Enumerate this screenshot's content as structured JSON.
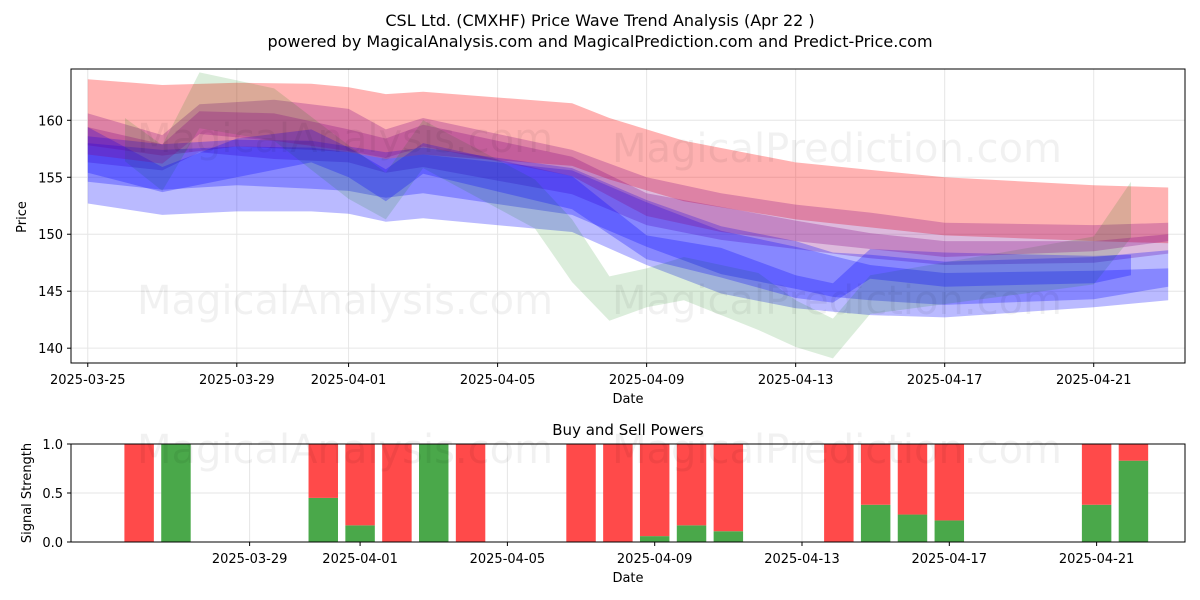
{
  "chart_data": [
    {
      "type": "area",
      "title_line1": "CSL Ltd. (CMXHF) Price Wave Trend Analysis (Apr 22 )",
      "title_line2": "powered by MagicalAnalysis.com and MagicalPrediction.com and Predict-Price.com",
      "xlabel": "Date",
      "ylabel": "Price",
      "x_ticks": [
        "2025-03-25",
        "2025-03-29",
        "2025-04-01",
        "2025-04-05",
        "2025-04-09",
        "2025-04-13",
        "2025-04-17",
        "2025-04-21"
      ],
      "y_ticks": [
        140,
        145,
        150,
        155,
        160
      ],
      "ylim": [
        138.7,
        164.5
      ],
      "xlim": [
        "2025-03-24",
        "2025-04-23"
      ],
      "grid": true,
      "bands": [
        {
          "color": "#ff0000",
          "x": [
            "2025-03-25",
            "2025-03-27",
            "2025-03-29",
            "2025-03-31",
            "2025-04-01",
            "2025-04-02",
            "2025-04-03",
            "2025-04-07",
            "2025-04-08",
            "2025-04-10",
            "2025-04-13",
            "2025-04-17",
            "2025-04-21",
            "2025-04-23"
          ],
          "upper": [
            163.6,
            163.1,
            163.3,
            163.2,
            162.9,
            162.3,
            162.5,
            161.5,
            160.2,
            158.2,
            156.3,
            155.0,
            154.3,
            154.1
          ],
          "lower": [
            157.8,
            156.9,
            157.7,
            157.4,
            157.2,
            156.6,
            157.0,
            156.0,
            154.8,
            152.9,
            151.3,
            149.9,
            149.4,
            149.2
          ]
        },
        {
          "color": "#800080",
          "x": [
            "2025-03-25",
            "2025-03-27",
            "2025-03-28",
            "2025-03-30",
            "2025-04-01",
            "2025-04-02",
            "2025-04-03",
            "2025-04-07",
            "2025-04-09",
            "2025-04-11",
            "2025-04-13",
            "2025-04-15",
            "2025-04-17",
            "2025-04-21",
            "2025-04-23"
          ],
          "upper": [
            160.6,
            158.7,
            161.4,
            161.8,
            161.0,
            159.2,
            160.2,
            157.4,
            155.0,
            153.6,
            152.6,
            151.9,
            151.0,
            150.8,
            151.0
          ],
          "lower": [
            156.3,
            155.6,
            157.2,
            156.6,
            156.3,
            155.4,
            155.9,
            153.5,
            150.8,
            149.5,
            148.7,
            147.9,
            147.3,
            147.5,
            148.3
          ]
        },
        {
          "color": "#0000ff",
          "x": [
            "2025-03-25",
            "2025-03-27",
            "2025-03-29",
            "2025-03-31",
            "2025-04-01",
            "2025-04-02",
            "2025-04-03",
            "2025-04-07",
            "2025-04-09",
            "2025-04-11",
            "2025-04-13",
            "2025-04-15",
            "2025-04-17",
            "2025-04-21",
            "2025-04-23"
          ],
          "upper": [
            158.0,
            157.4,
            157.7,
            157.6,
            157.2,
            156.6,
            157.0,
            155.6,
            152.8,
            150.3,
            148.9,
            147.3,
            146.6,
            146.8,
            147.0
          ],
          "lower": [
            152.7,
            151.7,
            152.0,
            152.0,
            151.8,
            151.1,
            151.4,
            150.2,
            147.3,
            144.8,
            143.5,
            142.9,
            142.7,
            143.6,
            144.2
          ]
        },
        {
          "color": "#0000ff",
          "x": [
            "2025-03-25",
            "2025-03-27",
            "2025-03-29",
            "2025-03-31",
            "2025-04-01",
            "2025-04-02",
            "2025-04-03",
            "2025-04-07",
            "2025-04-09",
            "2025-04-11",
            "2025-04-13",
            "2025-04-14",
            "2025-04-15",
            "2025-04-17",
            "2025-04-21",
            "2025-04-23"
          ],
          "upper": [
            158.6,
            157.9,
            158.3,
            158.2,
            157.7,
            157.2,
            157.6,
            155.8,
            153.0,
            150.7,
            149.4,
            148.4,
            148.2,
            147.6,
            148.0,
            148.6
          ],
          "lower": [
            154.6,
            153.9,
            154.3,
            154.0,
            153.8,
            153.2,
            153.6,
            151.7,
            148.9,
            146.5,
            145.2,
            144.5,
            144.2,
            143.8,
            144.3,
            145.4
          ]
        },
        {
          "color": "#008000",
          "x": [
            "2025-03-26",
            "2025-03-27",
            "2025-03-28",
            "2025-03-30",
            "2025-04-01",
            "2025-04-02",
            "2025-04-03",
            "2025-04-06",
            "2025-04-07",
            "2025-04-08",
            "2025-04-09",
            "2025-04-10",
            "2025-04-12",
            "2025-04-13",
            "2025-04-14",
            "2025-04-15",
            "2025-04-21",
            "2025-04-22"
          ],
          "upper": [
            160.2,
            157.8,
            164.2,
            162.8,
            157.8,
            155.4,
            160.0,
            154.8,
            151.3,
            146.3,
            147.0,
            148.0,
            146.6,
            144.2,
            142.6,
            146.4,
            149.8,
            154.6
          ],
          "lower": [
            156.4,
            153.8,
            159.3,
            158.2,
            153.1,
            151.3,
            155.8,
            150.5,
            145.8,
            142.4,
            143.6,
            144.2,
            141.6,
            140.1,
            139.1,
            143.0,
            145.6,
            149.7
          ]
        },
        {
          "color": "#0000ff",
          "x": [
            "2025-03-25",
            "2025-03-27",
            "2025-03-29",
            "2025-03-31",
            "2025-04-01",
            "2025-04-02",
            "2025-04-03",
            "2025-04-07",
            "2025-04-09",
            "2025-04-11",
            "2025-04-13",
            "2025-04-14",
            "2025-04-15",
            "2025-04-17",
            "2025-04-21",
            "2025-04-22"
          ],
          "upper": [
            159.4,
            155.9,
            158.4,
            159.2,
            157.6,
            155.7,
            158.0,
            155.1,
            149.9,
            148.8,
            146.4,
            145.7,
            148.7,
            148.4,
            148.1,
            148.2
          ],
          "lower": [
            155.4,
            153.7,
            155.0,
            156.3,
            155.0,
            152.9,
            155.3,
            152.2,
            147.8,
            146.2,
            144.4,
            144.0,
            146.1,
            145.4,
            145.7,
            146.4
          ]
        },
        {
          "color": "#800080",
          "x": [
            "2025-03-25",
            "2025-03-27",
            "2025-03-28",
            "2025-03-30",
            "2025-04-01",
            "2025-04-02",
            "2025-04-03",
            "2025-04-07",
            "2025-04-09",
            "2025-04-11",
            "2025-04-13",
            "2025-04-15",
            "2025-04-17",
            "2025-04-21",
            "2025-04-23"
          ],
          "upper": [
            159.4,
            157.9,
            160.8,
            160.6,
            159.2,
            158.4,
            159.6,
            156.8,
            153.6,
            152.4,
            151.2,
            150.1,
            149.4,
            149.4,
            150.0
          ],
          "lower": [
            157.0,
            156.2,
            158.8,
            158.2,
            157.3,
            156.7,
            157.7,
            155.1,
            151.6,
            150.2,
            149.4,
            148.7,
            148.0,
            148.5,
            149.4
          ]
        }
      ]
    },
    {
      "type": "bar",
      "title": "Buy and Sell Powers",
      "xlabel": "Date",
      "ylabel": "Signal Strength",
      "x_ticks": [
        "2025-03-29",
        "2025-04-01",
        "2025-04-05",
        "2025-04-09",
        "2025-04-13",
        "2025-04-17",
        "2025-04-21"
      ],
      "y_ticks": [
        "0.0",
        "0.5",
        "1.0"
      ],
      "ylim": [
        0,
        1
      ],
      "xlim": [
        "2025-03-24",
        "2025-04-23"
      ],
      "buy_color": "#4aa84a",
      "sell_color": "#ff4a4a",
      "bars": [
        {
          "date": "2025-03-26",
          "buy": 0.0
        },
        {
          "date": "2025-03-27",
          "buy": 1.0
        },
        {
          "date": "2025-03-31",
          "buy": 0.45
        },
        {
          "date": "2025-04-01",
          "buy": 0.17
        },
        {
          "date": "2025-04-02",
          "buy": 0.0
        },
        {
          "date": "2025-04-03",
          "buy": 1.0
        },
        {
          "date": "2025-04-04",
          "buy": 0.0
        },
        {
          "date": "2025-04-07",
          "buy": 0.0
        },
        {
          "date": "2025-04-08",
          "buy": 0.0
        },
        {
          "date": "2025-04-09",
          "buy": 0.06
        },
        {
          "date": "2025-04-10",
          "buy": 0.17
        },
        {
          "date": "2025-04-11",
          "buy": 0.11
        },
        {
          "date": "2025-04-14",
          "buy": 0.0
        },
        {
          "date": "2025-04-15",
          "buy": 0.38
        },
        {
          "date": "2025-04-16",
          "buy": 0.28
        },
        {
          "date": "2025-04-17",
          "buy": 0.22
        },
        {
          "date": "2025-04-21",
          "buy": 0.38
        },
        {
          "date": "2025-04-22",
          "buy": 0.83
        }
      ]
    }
  ],
  "watermarks": {
    "analysis": "MagicalAnalysis.com",
    "prediction": "MagicalPrediction.com"
  }
}
